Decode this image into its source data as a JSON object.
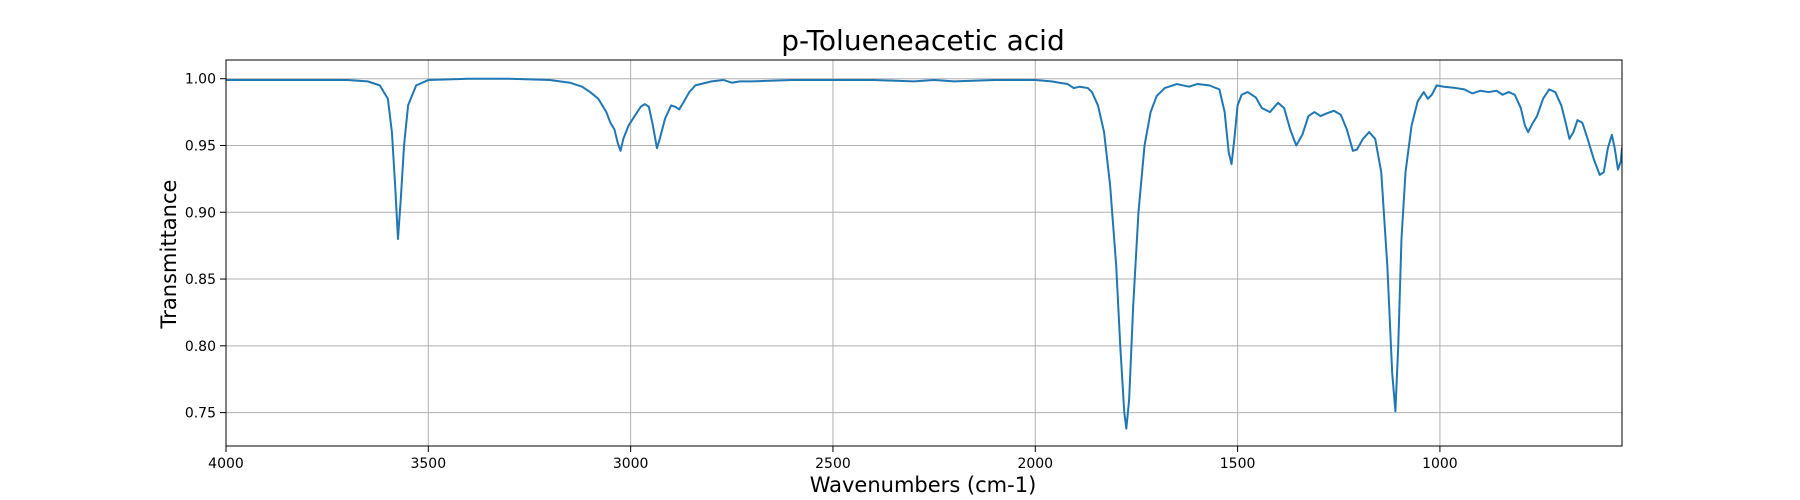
{
  "chart_data": {
    "type": "line",
    "title": "p-Tolueneacetic acid",
    "xlabel": "Wavenumbers (cm-1)",
    "ylabel": "Transmittance",
    "xlim": [
      4000,
      550
    ],
    "ylim": [
      0.725,
      1.014
    ],
    "x_reversed": true,
    "grid": true,
    "line_color": "#1f77b4",
    "xticks": [
      4000,
      3500,
      3000,
      2500,
      2000,
      1500,
      1000
    ],
    "xtick_labels": [
      "4000",
      "3500",
      "3000",
      "2500",
      "2000",
      "1500",
      "1000"
    ],
    "yticks": [
      0.75,
      0.8,
      0.85,
      0.9,
      0.95,
      1.0
    ],
    "ytick_labels": [
      "0.75",
      "0.80",
      "0.85",
      "0.90",
      "0.95",
      "1.00"
    ],
    "series": [
      {
        "points": [
          [
            4000,
            0.999
          ],
          [
            3900,
            0.999
          ],
          [
            3800,
            0.999
          ],
          [
            3700,
            0.999
          ],
          [
            3650,
            0.998
          ],
          [
            3620,
            0.995
          ],
          [
            3600,
            0.985
          ],
          [
            3590,
            0.96
          ],
          [
            3582,
            0.92
          ],
          [
            3575,
            0.88
          ],
          [
            3568,
            0.91
          ],
          [
            3560,
            0.95
          ],
          [
            3550,
            0.98
          ],
          [
            3530,
            0.995
          ],
          [
            3500,
            0.999
          ],
          [
            3400,
            1.0
          ],
          [
            3300,
            1.0
          ],
          [
            3200,
            0.999
          ],
          [
            3150,
            0.997
          ],
          [
            3120,
            0.994
          ],
          [
            3100,
            0.99
          ],
          [
            3080,
            0.985
          ],
          [
            3060,
            0.975
          ],
          [
            3050,
            0.967
          ],
          [
            3040,
            0.962
          ],
          [
            3032,
            0.952
          ],
          [
            3025,
            0.946
          ],
          [
            3018,
            0.955
          ],
          [
            3005,
            0.965
          ],
          [
            2990,
            0.972
          ],
          [
            2975,
            0.979
          ],
          [
            2965,
            0.981
          ],
          [
            2955,
            0.979
          ],
          [
            2945,
            0.965
          ],
          [
            2935,
            0.948
          ],
          [
            2928,
            0.955
          ],
          [
            2915,
            0.97
          ],
          [
            2900,
            0.98
          ],
          [
            2890,
            0.979
          ],
          [
            2880,
            0.977
          ],
          [
            2870,
            0.982
          ],
          [
            2855,
            0.99
          ],
          [
            2840,
            0.995
          ],
          [
            2800,
            0.998
          ],
          [
            2770,
            0.999
          ],
          [
            2750,
            0.997
          ],
          [
            2730,
            0.998
          ],
          [
            2700,
            0.998
          ],
          [
            2600,
            0.999
          ],
          [
            2500,
            0.999
          ],
          [
            2400,
            0.999
          ],
          [
            2300,
            0.998
          ],
          [
            2250,
            0.999
          ],
          [
            2200,
            0.998
          ],
          [
            2100,
            0.999
          ],
          [
            2000,
            0.999
          ],
          [
            1960,
            0.998
          ],
          [
            1940,
            0.997
          ],
          [
            1920,
            0.996
          ],
          [
            1905,
            0.993
          ],
          [
            1890,
            0.994
          ],
          [
            1870,
            0.993
          ],
          [
            1860,
            0.99
          ],
          [
            1845,
            0.98
          ],
          [
            1830,
            0.96
          ],
          [
            1815,
            0.92
          ],
          [
            1800,
            0.86
          ],
          [
            1790,
            0.8
          ],
          [
            1780,
            0.75
          ],
          [
            1775,
            0.738
          ],
          [
            1768,
            0.76
          ],
          [
            1758,
            0.83
          ],
          [
            1745,
            0.9
          ],
          [
            1730,
            0.95
          ],
          [
            1715,
            0.975
          ],
          [
            1700,
            0.987
          ],
          [
            1680,
            0.993
          ],
          [
            1650,
            0.996
          ],
          [
            1620,
            0.994
          ],
          [
            1600,
            0.996
          ],
          [
            1570,
            0.995
          ],
          [
            1545,
            0.992
          ],
          [
            1532,
            0.975
          ],
          [
            1522,
            0.945
          ],
          [
            1515,
            0.936
          ],
          [
            1508,
            0.955
          ],
          [
            1500,
            0.98
          ],
          [
            1490,
            0.988
          ],
          [
            1475,
            0.99
          ],
          [
            1455,
            0.986
          ],
          [
            1440,
            0.978
          ],
          [
            1420,
            0.975
          ],
          [
            1400,
            0.982
          ],
          [
            1385,
            0.978
          ],
          [
            1370,
            0.962
          ],
          [
            1355,
            0.95
          ],
          [
            1340,
            0.958
          ],
          [
            1325,
            0.972
          ],
          [
            1310,
            0.975
          ],
          [
            1295,
            0.972
          ],
          [
            1280,
            0.974
          ],
          [
            1262,
            0.976
          ],
          [
            1245,
            0.973
          ],
          [
            1230,
            0.962
          ],
          [
            1215,
            0.946
          ],
          [
            1205,
            0.947
          ],
          [
            1190,
            0.955
          ],
          [
            1175,
            0.96
          ],
          [
            1160,
            0.955
          ],
          [
            1145,
            0.93
          ],
          [
            1130,
            0.86
          ],
          [
            1118,
            0.78
          ],
          [
            1110,
            0.751
          ],
          [
            1103,
            0.8
          ],
          [
            1095,
            0.88
          ],
          [
            1085,
            0.93
          ],
          [
            1070,
            0.965
          ],
          [
            1055,
            0.983
          ],
          [
            1040,
            0.99
          ],
          [
            1030,
            0.985
          ],
          [
            1020,
            0.988
          ],
          [
            1008,
            0.995
          ],
          [
            990,
            0.994
          ],
          [
            960,
            0.993
          ],
          [
            940,
            0.992
          ],
          [
            920,
            0.989
          ],
          [
            900,
            0.991
          ],
          [
            880,
            0.99
          ],
          [
            860,
            0.991
          ],
          [
            845,
            0.988
          ],
          [
            830,
            0.99
          ],
          [
            815,
            0.988
          ],
          [
            800,
            0.978
          ],
          [
            790,
            0.965
          ],
          [
            782,
            0.96
          ],
          [
            772,
            0.966
          ],
          [
            760,
            0.972
          ],
          [
            745,
            0.985
          ],
          [
            730,
            0.992
          ],
          [
            715,
            0.99
          ],
          [
            700,
            0.98
          ],
          [
            690,
            0.968
          ],
          [
            680,
            0.955
          ],
          [
            670,
            0.96
          ],
          [
            660,
            0.969
          ],
          [
            648,
            0.967
          ],
          [
            635,
            0.955
          ],
          [
            620,
            0.94
          ],
          [
            605,
            0.928
          ],
          [
            595,
            0.93
          ],
          [
            585,
            0.948
          ],
          [
            575,
            0.958
          ],
          [
            568,
            0.948
          ],
          [
            560,
            0.932
          ],
          [
            553,
            0.938
          ],
          [
            550,
            0.948
          ]
        ]
      }
    ]
  }
}
